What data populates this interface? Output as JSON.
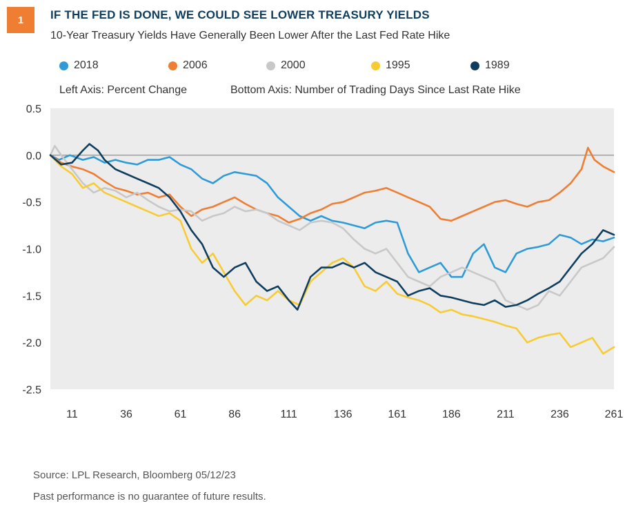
{
  "header": {
    "badge": "1",
    "title": "IF THE FED IS DONE, WE COULD SEE LOWER TREASURY YIELDS",
    "subtitle": "10-Year Treasury Yields Have Generally Been Lower After the Last Fed Rate Hike"
  },
  "axis_notes": {
    "left": "Left Axis: Percent Change",
    "bottom": "Bottom Axis: Number of Trading Days Since Last Rate Hike"
  },
  "footer": {
    "source": "Source: LPL Research, Bloomberg  05/12/23",
    "disclaimer": "Past performance is no guarantee of future results."
  },
  "chart_data": {
    "type": "line",
    "title": "10-Year Treasury Yields Have Generally Been Lower After the Last Fed Rate Hike",
    "xlabel": "Number of Trading Days Since Last Rate Hike",
    "ylabel": "Percent Change",
    "xlim": [
      1,
      261
    ],
    "ylim": [
      -2.5,
      0.5
    ],
    "x_ticks": [
      11,
      36,
      61,
      86,
      111,
      136,
      161,
      186,
      211,
      236,
      261
    ],
    "y_ticks": [
      0.5,
      0.0,
      -0.5,
      -1.0,
      -1.5,
      -2.0,
      -2.5
    ],
    "y_tick_labels": [
      "0.5",
      "0.0",
      "-0.5",
      "-1.0",
      "-1.5",
      "-2.0",
      "-2.5"
    ],
    "grid": false,
    "zero_line": true,
    "legend_position": "top",
    "colors": {
      "2018": "#2e9ad6",
      "2006": "#ef7d32",
      "2000": "#c8c8c8",
      "1995": "#f7cb33",
      "1989": "#0e3d5d",
      "plot_background": "#ececec"
    },
    "series": [
      {
        "name": "2018",
        "color": "#2e9ad6",
        "points": [
          [
            1,
            0.0
          ],
          [
            5,
            -0.05
          ],
          [
            10,
            0.0
          ],
          [
            16,
            -0.05
          ],
          [
            21,
            -0.02
          ],
          [
            26,
            -0.08
          ],
          [
            31,
            -0.05
          ],
          [
            36,
            -0.08
          ],
          [
            41,
            -0.1
          ],
          [
            46,
            -0.05
          ],
          [
            51,
            -0.05
          ],
          [
            56,
            -0.02
          ],
          [
            61,
            -0.1
          ],
          [
            66,
            -0.15
          ],
          [
            71,
            -0.25
          ],
          [
            76,
            -0.3
          ],
          [
            81,
            -0.22
          ],
          [
            86,
            -0.18
          ],
          [
            91,
            -0.2
          ],
          [
            96,
            -0.22
          ],
          [
            101,
            -0.3
          ],
          [
            106,
            -0.45
          ],
          [
            111,
            -0.55
          ],
          [
            116,
            -0.65
          ],
          [
            121,
            -0.7
          ],
          [
            126,
            -0.65
          ],
          [
            131,
            -0.7
          ],
          [
            136,
            -0.72
          ],
          [
            141,
            -0.75
          ],
          [
            146,
            -0.78
          ],
          [
            151,
            -0.72
          ],
          [
            156,
            -0.7
          ],
          [
            161,
            -0.72
          ],
          [
            166,
            -1.05
          ],
          [
            171,
            -1.25
          ],
          [
            176,
            -1.2
          ],
          [
            181,
            -1.15
          ],
          [
            186,
            -1.3
          ],
          [
            191,
            -1.3
          ],
          [
            196,
            -1.05
          ],
          [
            201,
            -0.95
          ],
          [
            206,
            -1.2
          ],
          [
            211,
            -1.25
          ],
          [
            216,
            -1.05
          ],
          [
            221,
            -1.0
          ],
          [
            226,
            -0.98
          ],
          [
            231,
            -0.95
          ],
          [
            236,
            -0.85
          ],
          [
            241,
            -0.88
          ],
          [
            246,
            -0.95
          ],
          [
            251,
            -0.9
          ],
          [
            256,
            -0.92
          ],
          [
            261,
            -0.88
          ]
        ]
      },
      {
        "name": "2006",
        "color": "#ef7d32",
        "points": [
          [
            1,
            0.0
          ],
          [
            6,
            -0.08
          ],
          [
            11,
            -0.12
          ],
          [
            16,
            -0.15
          ],
          [
            21,
            -0.2
          ],
          [
            26,
            -0.28
          ],
          [
            31,
            -0.35
          ],
          [
            36,
            -0.38
          ],
          [
            41,
            -0.42
          ],
          [
            46,
            -0.4
          ],
          [
            51,
            -0.45
          ],
          [
            56,
            -0.42
          ],
          [
            61,
            -0.55
          ],
          [
            66,
            -0.65
          ],
          [
            71,
            -0.58
          ],
          [
            76,
            -0.55
          ],
          [
            81,
            -0.5
          ],
          [
            86,
            -0.45
          ],
          [
            91,
            -0.52
          ],
          [
            96,
            -0.58
          ],
          [
            101,
            -0.62
          ],
          [
            106,
            -0.65
          ],
          [
            111,
            -0.72
          ],
          [
            116,
            -0.68
          ],
          [
            121,
            -0.62
          ],
          [
            126,
            -0.58
          ],
          [
            131,
            -0.52
          ],
          [
            136,
            -0.5
          ],
          [
            141,
            -0.45
          ],
          [
            146,
            -0.4
          ],
          [
            151,
            -0.38
          ],
          [
            156,
            -0.35
          ],
          [
            161,
            -0.4
          ],
          [
            166,
            -0.45
          ],
          [
            171,
            -0.5
          ],
          [
            176,
            -0.55
          ],
          [
            181,
            -0.68
          ],
          [
            186,
            -0.7
          ],
          [
            191,
            -0.65
          ],
          [
            196,
            -0.6
          ],
          [
            201,
            -0.55
          ],
          [
            206,
            -0.5
          ],
          [
            211,
            -0.48
          ],
          [
            216,
            -0.52
          ],
          [
            221,
            -0.55
          ],
          [
            226,
            -0.5
          ],
          [
            231,
            -0.48
          ],
          [
            236,
            -0.4
          ],
          [
            241,
            -0.3
          ],
          [
            246,
            -0.15
          ],
          [
            249,
            0.08
          ],
          [
            252,
            -0.05
          ],
          [
            256,
            -0.12
          ],
          [
            261,
            -0.18
          ]
        ]
      },
      {
        "name": "2000",
        "color": "#c8c8c8",
        "points": [
          [
            1,
            0.0
          ],
          [
            3,
            0.1
          ],
          [
            6,
            0.0
          ],
          [
            11,
            -0.15
          ],
          [
            16,
            -0.3
          ],
          [
            21,
            -0.4
          ],
          [
            26,
            -0.35
          ],
          [
            31,
            -0.38
          ],
          [
            36,
            -0.45
          ],
          [
            41,
            -0.4
          ],
          [
            46,
            -0.48
          ],
          [
            51,
            -0.55
          ],
          [
            56,
            -0.6
          ],
          [
            61,
            -0.58
          ],
          [
            66,
            -0.6
          ],
          [
            71,
            -0.7
          ],
          [
            76,
            -0.65
          ],
          [
            81,
            -0.62
          ],
          [
            86,
            -0.55
          ],
          [
            91,
            -0.6
          ],
          [
            96,
            -0.58
          ],
          [
            101,
            -0.62
          ],
          [
            106,
            -0.7
          ],
          [
            111,
            -0.75
          ],
          [
            116,
            -0.8
          ],
          [
            121,
            -0.72
          ],
          [
            126,
            -0.7
          ],
          [
            131,
            -0.72
          ],
          [
            136,
            -0.78
          ],
          [
            141,
            -0.9
          ],
          [
            146,
            -1.0
          ],
          [
            151,
            -1.05
          ],
          [
            156,
            -1.0
          ],
          [
            161,
            -1.15
          ],
          [
            166,
            -1.3
          ],
          [
            171,
            -1.35
          ],
          [
            176,
            -1.4
          ],
          [
            181,
            -1.3
          ],
          [
            186,
            -1.25
          ],
          [
            191,
            -1.2
          ],
          [
            196,
            -1.25
          ],
          [
            201,
            -1.3
          ],
          [
            206,
            -1.35
          ],
          [
            211,
            -1.55
          ],
          [
            216,
            -1.6
          ],
          [
            221,
            -1.65
          ],
          [
            226,
            -1.6
          ],
          [
            231,
            -1.45
          ],
          [
            236,
            -1.5
          ],
          [
            241,
            -1.35
          ],
          [
            246,
            -1.2
          ],
          [
            251,
            -1.15
          ],
          [
            256,
            -1.1
          ],
          [
            261,
            -0.98
          ]
        ]
      },
      {
        "name": "1995",
        "color": "#f7cb33",
        "points": [
          [
            1,
            0.0
          ],
          [
            6,
            -0.12
          ],
          [
            11,
            -0.2
          ],
          [
            16,
            -0.35
          ],
          [
            21,
            -0.3
          ],
          [
            26,
            -0.4
          ],
          [
            31,
            -0.45
          ],
          [
            36,
            -0.5
          ],
          [
            41,
            -0.55
          ],
          [
            46,
            -0.6
          ],
          [
            51,
            -0.65
          ],
          [
            56,
            -0.62
          ],
          [
            61,
            -0.7
          ],
          [
            66,
            -1.0
          ],
          [
            71,
            -1.15
          ],
          [
            76,
            -1.05
          ],
          [
            81,
            -1.25
          ],
          [
            86,
            -1.45
          ],
          [
            91,
            -1.6
          ],
          [
            96,
            -1.5
          ],
          [
            101,
            -1.55
          ],
          [
            106,
            -1.45
          ],
          [
            111,
            -1.55
          ],
          [
            116,
            -1.6
          ],
          [
            121,
            -1.35
          ],
          [
            126,
            -1.25
          ],
          [
            131,
            -1.15
          ],
          [
            136,
            -1.1
          ],
          [
            141,
            -1.2
          ],
          [
            146,
            -1.4
          ],
          [
            151,
            -1.45
          ],
          [
            156,
            -1.35
          ],
          [
            161,
            -1.48
          ],
          [
            166,
            -1.52
          ],
          [
            171,
            -1.55
          ],
          [
            176,
            -1.6
          ],
          [
            181,
            -1.68
          ],
          [
            186,
            -1.65
          ],
          [
            191,
            -1.7
          ],
          [
            196,
            -1.72
          ],
          [
            201,
            -1.75
          ],
          [
            206,
            -1.78
          ],
          [
            211,
            -1.82
          ],
          [
            216,
            -1.85
          ],
          [
            221,
            -2.0
          ],
          [
            226,
            -1.95
          ],
          [
            231,
            -1.92
          ],
          [
            236,
            -1.9
          ],
          [
            241,
            -2.05
          ],
          [
            246,
            -2.0
          ],
          [
            251,
            -1.95
          ],
          [
            256,
            -2.12
          ],
          [
            261,
            -2.05
          ]
        ]
      },
      {
        "name": "1989",
        "color": "#0e3d5d",
        "points": [
          [
            1,
            0.0
          ],
          [
            6,
            -0.1
          ],
          [
            11,
            -0.08
          ],
          [
            16,
            0.05
          ],
          [
            19,
            0.12
          ],
          [
            23,
            0.05
          ],
          [
            26,
            -0.05
          ],
          [
            31,
            -0.15
          ],
          [
            36,
            -0.2
          ],
          [
            41,
            -0.25
          ],
          [
            46,
            -0.3
          ],
          [
            51,
            -0.35
          ],
          [
            56,
            -0.45
          ],
          [
            61,
            -0.6
          ],
          [
            66,
            -0.8
          ],
          [
            71,
            -0.95
          ],
          [
            76,
            -1.2
          ],
          [
            81,
            -1.3
          ],
          [
            86,
            -1.2
          ],
          [
            91,
            -1.15
          ],
          [
            96,
            -1.35
          ],
          [
            101,
            -1.45
          ],
          [
            106,
            -1.4
          ],
          [
            111,
            -1.55
          ],
          [
            115,
            -1.65
          ],
          [
            121,
            -1.3
          ],
          [
            126,
            -1.2
          ],
          [
            131,
            -1.2
          ],
          [
            136,
            -1.15
          ],
          [
            141,
            -1.2
          ],
          [
            146,
            -1.15
          ],
          [
            151,
            -1.25
          ],
          [
            156,
            -1.3
          ],
          [
            161,
            -1.35
          ],
          [
            166,
            -1.5
          ],
          [
            171,
            -1.45
          ],
          [
            176,
            -1.42
          ],
          [
            181,
            -1.5
          ],
          [
            186,
            -1.52
          ],
          [
            191,
            -1.55
          ],
          [
            196,
            -1.58
          ],
          [
            201,
            -1.6
          ],
          [
            206,
            -1.55
          ],
          [
            211,
            -1.62
          ],
          [
            216,
            -1.6
          ],
          [
            221,
            -1.55
          ],
          [
            226,
            -1.48
          ],
          [
            231,
            -1.42
          ],
          [
            236,
            -1.35
          ],
          [
            241,
            -1.2
          ],
          [
            246,
            -1.05
          ],
          [
            251,
            -0.95
          ],
          [
            256,
            -0.8
          ],
          [
            261,
            -0.85
          ]
        ]
      }
    ]
  }
}
